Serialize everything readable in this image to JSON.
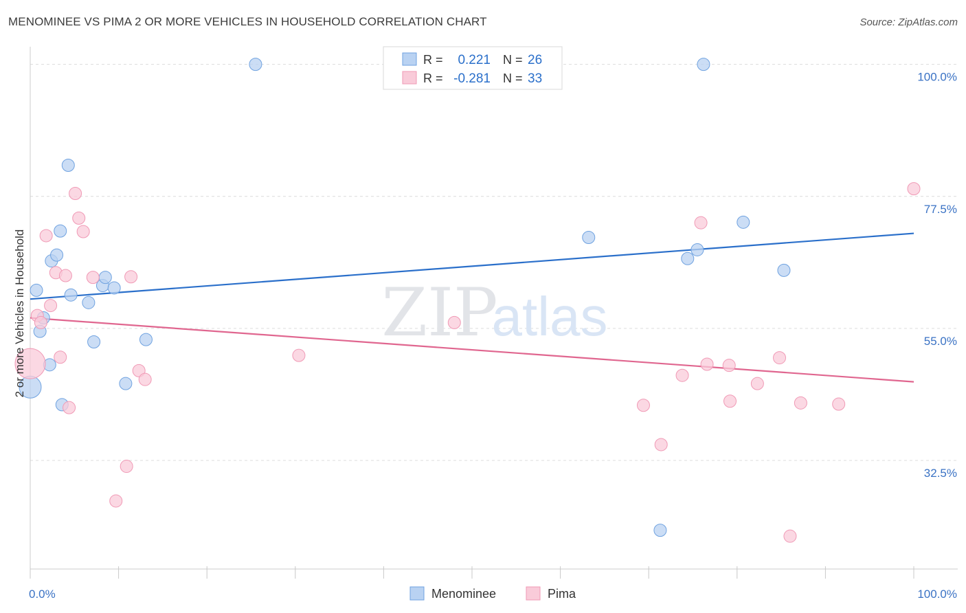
{
  "title": "MENOMINEE VS PIMA 2 OR MORE VEHICLES IN HOUSEHOLD CORRELATION CHART",
  "source": "Source: ZipAtlas.com",
  "watermark": {
    "zip": "ZIP",
    "atlas": "atlas"
  },
  "chart_data": {
    "type": "scatter",
    "ylabel": "2 or more Vehicles in Household",
    "xlabel": "",
    "xlim": [
      0,
      100
    ],
    "ylim": [
      14,
      103
    ],
    "x_tick_labels": [
      {
        "value": 0,
        "label": "0.0%"
      },
      {
        "value": 100,
        "label": "100.0%"
      }
    ],
    "y_tick_labels": [
      {
        "value": 100,
        "label": "100.0%"
      },
      {
        "value": 77.5,
        "label": "77.5%"
      },
      {
        "value": 55,
        "label": "55.0%"
      },
      {
        "value": 32.5,
        "label": "32.5%"
      }
    ],
    "x_minor_ticks": [
      0,
      10,
      20,
      30,
      40,
      50,
      60,
      70,
      80,
      90,
      100
    ],
    "grid": true,
    "legend": {
      "position": "top-center",
      "entries": [
        {
          "r_label": "R =",
          "r_value": "0.221",
          "n_label": "N =",
          "n_value": "26"
        },
        {
          "r_label": "R =",
          "r_value": "-0.281",
          "n_label": "N =",
          "n_value": "33"
        }
      ]
    },
    "bottom_legend": [
      "Menominee",
      "Pima"
    ],
    "series": [
      {
        "name": "Menominee",
        "color": "#6fa2e0",
        "fill": "#b9d2f2",
        "trend_color": "#2a6fca",
        "trend": {
          "x": [
            0,
            100
          ],
          "y": [
            60.0,
            71.2
          ]
        },
        "points": [
          {
            "x": 0.0,
            "y": 45.0,
            "size": 16
          },
          {
            "x": 0.7,
            "y": 61.5,
            "size": 9
          },
          {
            "x": 1.1,
            "y": 54.5,
            "size": 9
          },
          {
            "x": 1.5,
            "y": 56.8,
            "size": 9
          },
          {
            "x": 2.2,
            "y": 48.8,
            "size": 9
          },
          {
            "x": 2.4,
            "y": 66.5,
            "size": 9
          },
          {
            "x": 3.0,
            "y": 67.5,
            "size": 9
          },
          {
            "x": 3.4,
            "y": 71.6,
            "size": 9
          },
          {
            "x": 3.6,
            "y": 42.0,
            "size": 9
          },
          {
            "x": 4.3,
            "y": 82.8,
            "size": 9
          },
          {
            "x": 4.6,
            "y": 60.7,
            "size": 9
          },
          {
            "x": 6.6,
            "y": 59.4,
            "size": 9
          },
          {
            "x": 7.2,
            "y": 52.7,
            "size": 9
          },
          {
            "x": 8.2,
            "y": 62.3,
            "size": 9
          },
          {
            "x": 8.5,
            "y": 63.7,
            "size": 9
          },
          {
            "x": 9.5,
            "y": 61.9,
            "size": 9
          },
          {
            "x": 10.8,
            "y": 45.6,
            "size": 9
          },
          {
            "x": 13.1,
            "y": 53.1,
            "size": 9
          },
          {
            "x": 25.5,
            "y": 100.0,
            "size": 9
          },
          {
            "x": 63.2,
            "y": 70.5,
            "size": 9
          },
          {
            "x": 71.3,
            "y": 20.6,
            "size": 9
          },
          {
            "x": 74.4,
            "y": 66.9,
            "size": 9
          },
          {
            "x": 75.5,
            "y": 68.4,
            "size": 9
          },
          {
            "x": 76.2,
            "y": 100.0,
            "size": 9
          },
          {
            "x": 80.7,
            "y": 73.1,
            "size": 9
          },
          {
            "x": 85.3,
            "y": 64.9,
            "size": 9
          }
        ]
      },
      {
        "name": "Pima",
        "color": "#f099b5",
        "fill": "#f9cbd9",
        "trend_color": "#e0668f",
        "trend": {
          "x": [
            0,
            100
          ],
          "y": [
            56.8,
            45.9
          ]
        },
        "points": [
          {
            "x": 0.0,
            "y": 49.0,
            "size": 22
          },
          {
            "x": 0.8,
            "y": 57.2,
            "size": 9
          },
          {
            "x": 1.2,
            "y": 56.0,
            "size": 9
          },
          {
            "x": 1.8,
            "y": 70.8,
            "size": 9
          },
          {
            "x": 2.3,
            "y": 58.9,
            "size": 9
          },
          {
            "x": 2.9,
            "y": 64.5,
            "size": 9
          },
          {
            "x": 3.4,
            "y": 50.1,
            "size": 9
          },
          {
            "x": 4.0,
            "y": 64.0,
            "size": 9
          },
          {
            "x": 4.4,
            "y": 41.5,
            "size": 9
          },
          {
            "x": 5.1,
            "y": 78.0,
            "size": 9
          },
          {
            "x": 5.5,
            "y": 73.8,
            "size": 9
          },
          {
            "x": 6.0,
            "y": 71.5,
            "size": 9
          },
          {
            "x": 7.1,
            "y": 63.7,
            "size": 9
          },
          {
            "x": 9.7,
            "y": 25.6,
            "size": 9
          },
          {
            "x": 10.9,
            "y": 31.5,
            "size": 9
          },
          {
            "x": 11.4,
            "y": 63.8,
            "size": 9
          },
          {
            "x": 12.3,
            "y": 47.8,
            "size": 9
          },
          {
            "x": 13.0,
            "y": 46.3,
            "size": 9
          },
          {
            "x": 30.4,
            "y": 50.4,
            "size": 9
          },
          {
            "x": 48.0,
            "y": 56.0,
            "size": 9
          },
          {
            "x": 69.4,
            "y": 41.9,
            "size": 9
          },
          {
            "x": 71.4,
            "y": 35.2,
            "size": 9
          },
          {
            "x": 73.8,
            "y": 47.0,
            "size": 9
          },
          {
            "x": 75.9,
            "y": 73.0,
            "size": 9
          },
          {
            "x": 76.6,
            "y": 48.9,
            "size": 9
          },
          {
            "x": 79.1,
            "y": 48.7,
            "size": 9
          },
          {
            "x": 79.2,
            "y": 42.6,
            "size": 9
          },
          {
            "x": 82.3,
            "y": 45.6,
            "size": 9
          },
          {
            "x": 84.8,
            "y": 50.0,
            "size": 9
          },
          {
            "x": 86.0,
            "y": 19.6,
            "size": 9
          },
          {
            "x": 87.2,
            "y": 42.3,
            "size": 9
          },
          {
            "x": 91.5,
            "y": 42.1,
            "size": 9
          },
          {
            "x": 100.0,
            "y": 78.8,
            "size": 9
          }
        ]
      }
    ]
  }
}
